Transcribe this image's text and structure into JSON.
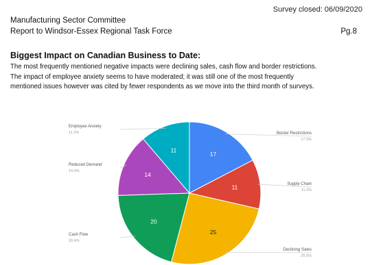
{
  "header": {
    "survey_closed": "Survey closed: 06/09/2020",
    "committee": "Manufacturing Sector Committee",
    "report_to": "Report to Windsor-Essex Regional Task Force",
    "page_number": "Pg.8"
  },
  "section": {
    "heading": "Biggest Impact on Canadian Business to Date:",
    "paragraph_lines": [
      "The most frequently mentioned negative impacts were declining sales, cash flow and border restrictions.",
      "The impact of employee anxiety seems to have moderated; it was still one of the most frequently",
      "mentioned issues however was cited by fewer respondents as we move into the third month of surveys."
    ]
  },
  "chart_data": {
    "type": "pie",
    "slices": [
      {
        "name": "Border Restrictions",
        "value": 17,
        "percent": "17.3%",
        "color": "#4285f4",
        "value_label": "17",
        "value_color": "#ffffff"
      },
      {
        "name": "Supply Chain",
        "value": 11,
        "percent": "11.2%",
        "color": "#db4437",
        "value_label": "11",
        "value_color": "#ffffff"
      },
      {
        "name": "Declining Sales",
        "value": 25,
        "percent": "25.5%",
        "color": "#f4b400",
        "value_label": "25",
        "value_color": "#222222"
      },
      {
        "name": "Cash Flow",
        "value": 20,
        "percent": "20.4%",
        "color": "#0f9d58",
        "value_label": "20",
        "value_color": "#ffffff"
      },
      {
        "name": "Reduced Demand",
        "value": 14,
        "percent": "14.3%",
        "color": "#ab47bc",
        "value_label": "14",
        "value_color": "#ffffff"
      },
      {
        "name": "Employee Anxiety",
        "value": 11,
        "percent": "11.2%",
        "color": "#00acc1",
        "value_label": "11",
        "value_color": "#ffffff"
      }
    ],
    "start": "12 o'clock",
    "direction": "clockwise",
    "legend": "leader-line labels"
  }
}
